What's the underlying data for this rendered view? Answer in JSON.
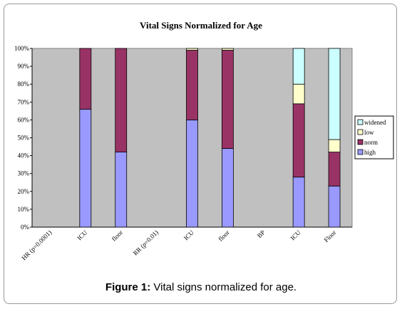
{
  "caption": {
    "label": "Figure 1:",
    "text": "Vital signs normalized for age."
  },
  "chart_data": {
    "type": "bar",
    "stacked": true,
    "title": "Vital Signs Normalized for Age",
    "xlabel": "",
    "ylabel": "",
    "ylim": [
      0,
      100
    ],
    "y_ticks": [
      "0%",
      "10%",
      "20%",
      "30%",
      "40%",
      "50%",
      "60%",
      "70%",
      "80%",
      "90%",
      "100%"
    ],
    "categories": [
      "HR (p=0.0001)",
      "ICU",
      "floor",
      "RR (p=0.01)",
      "ICU",
      "floor",
      "BP",
      "ICU",
      "Floor"
    ],
    "series": [
      {
        "name": "high",
        "color": "#9999ff",
        "values": [
          null,
          66,
          42,
          null,
          60,
          44,
          null,
          28,
          23
        ]
      },
      {
        "name": "norm",
        "color": "#993366",
        "values": [
          null,
          34,
          58,
          null,
          39,
          55,
          null,
          41,
          19
        ]
      },
      {
        "name": "low",
        "color": "#ffffcc",
        "values": [
          null,
          0,
          0,
          null,
          1,
          1,
          null,
          11,
          7
        ]
      },
      {
        "name": "widened",
        "color": "#ccffff",
        "values": [
          null,
          0,
          0,
          null,
          0,
          0,
          null,
          20,
          51
        ]
      }
    ],
    "legend_position": "right",
    "plot_background": "#c0c0c0",
    "grid": false
  }
}
